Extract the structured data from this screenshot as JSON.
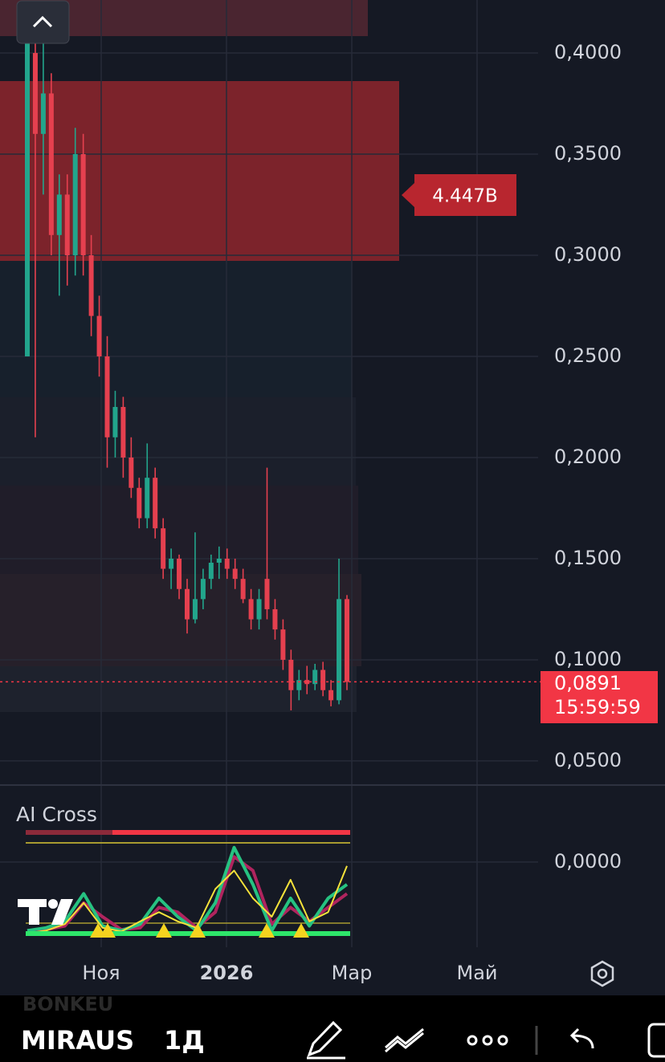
{
  "chart_data": {
    "type": "candlestick",
    "yticks": [
      {
        "value": 0.4,
        "label": "0,4000"
      },
      {
        "value": 0.35,
        "label": "0,3500"
      },
      {
        "value": 0.3,
        "label": "0,3000"
      },
      {
        "value": 0.25,
        "label": "0,2500"
      },
      {
        "value": 0.2,
        "label": "0,2000"
      },
      {
        "value": 0.15,
        "label": "0,1500"
      },
      {
        "value": 0.1,
        "label": "0,1000"
      },
      {
        "value": 0.05,
        "label": "0,0500"
      },
      {
        "value": 0,
        "label": "0,0000"
      }
    ],
    "ylim": [
      -0.0421,
      0.4262
    ],
    "xticks": [
      "Ноя",
      "2026",
      "Мар",
      "Май"
    ],
    "up_color": "#22a58c",
    "down_color": "#e5404f",
    "open": [
      0.25,
      0.4,
      0.36,
      0.38,
      0.31,
      0.33,
      0.3,
      0.35,
      0.3,
      0.27,
      0.25,
      0.21,
      0.225,
      0.2,
      0.185,
      0.17,
      0.19,
      0.165,
      0.145,
      0.15,
      0.135,
      0.12,
      0.13,
      0.14,
      0.148,
      0.15,
      0.145,
      0.14,
      0.13,
      0.12,
      0.14,
      0.125,
      0.115,
      0.1,
      0.085,
      0.09,
      0.088,
      0.095,
      0.085,
      0.08,
      0.13
    ],
    "high": [
      0.415,
      0.42,
      0.41,
      0.39,
      0.34,
      0.34,
      0.363,
      0.36,
      0.31,
      0.28,
      0.26,
      0.233,
      0.23,
      0.21,
      0.19,
      0.207,
      0.195,
      0.17,
      0.155,
      0.152,
      0.14,
      0.163,
      0.145,
      0.152,
      0.156,
      0.155,
      0.15,
      0.145,
      0.135,
      0.135,
      0.195,
      0.13,
      0.12,
      0.105,
      0.095,
      0.097,
      0.098,
      0.099,
      0.09,
      0.15,
      0.132
    ],
    "low": [
      0.25,
      0.21,
      0.33,
      0.3,
      0.28,
      0.285,
      0.29,
      0.29,
      0.26,
      0.24,
      0.195,
      0.2,
      0.19,
      0.18,
      0.165,
      0.165,
      0.16,
      0.14,
      0.135,
      0.13,
      0.113,
      0.118,
      0.125,
      0.135,
      0.14,
      0.14,
      0.135,
      0.128,
      0.115,
      0.115,
      0.12,
      0.11,
      0.095,
      0.075,
      0.08,
      0.083,
      0.085,
      0.082,
      0.077,
      0.078,
      0.085
    ],
    "close": [
      0.41,
      0.36,
      0.38,
      0.31,
      0.33,
      0.3,
      0.35,
      0.3,
      0.27,
      0.25,
      0.21,
      0.225,
      0.2,
      0.185,
      0.17,
      0.19,
      0.165,
      0.145,
      0.15,
      0.135,
      0.12,
      0.13,
      0.14,
      0.148,
      0.15,
      0.145,
      0.14,
      0.13,
      0.12,
      0.13,
      0.125,
      0.115,
      0.1,
      0.085,
      0.09,
      0.088,
      0.095,
      0.085,
      0.08,
      0.13,
      0.0891
    ],
    "volume_label": "4.447B",
    "last_price": 0.0891,
    "last_price_label": "0,0891",
    "countdown": "15:59:59",
    "indicator": {
      "name": "AI Cross",
      "ylim": [
        0,
        100
      ],
      "series": [
        {
          "color": "#26c281",
          "values": [
            5,
            8,
            15,
            45,
            10,
            5,
            12,
            40,
            20,
            5,
            35,
            95,
            55,
            5,
            40,
            10,
            40,
            55
          ]
        },
        {
          "color": "#b0245e",
          "values": [
            5,
            6,
            10,
            35,
            20,
            6,
            8,
            30,
            25,
            8,
            25,
            85,
            70,
            12,
            30,
            15,
            30,
            45
          ]
        },
        {
          "color": "#f5e23a",
          "values": [
            2,
            5,
            12,
            35,
            8,
            4,
            15,
            25,
            15,
            8,
            50,
            70,
            40,
            20,
            60,
            15,
            25,
            75
          ]
        }
      ]
    }
  },
  "toolbar": {
    "symbol": "MIRAUS",
    "interval": "1Д",
    "background_symbol": "BONKEU"
  }
}
